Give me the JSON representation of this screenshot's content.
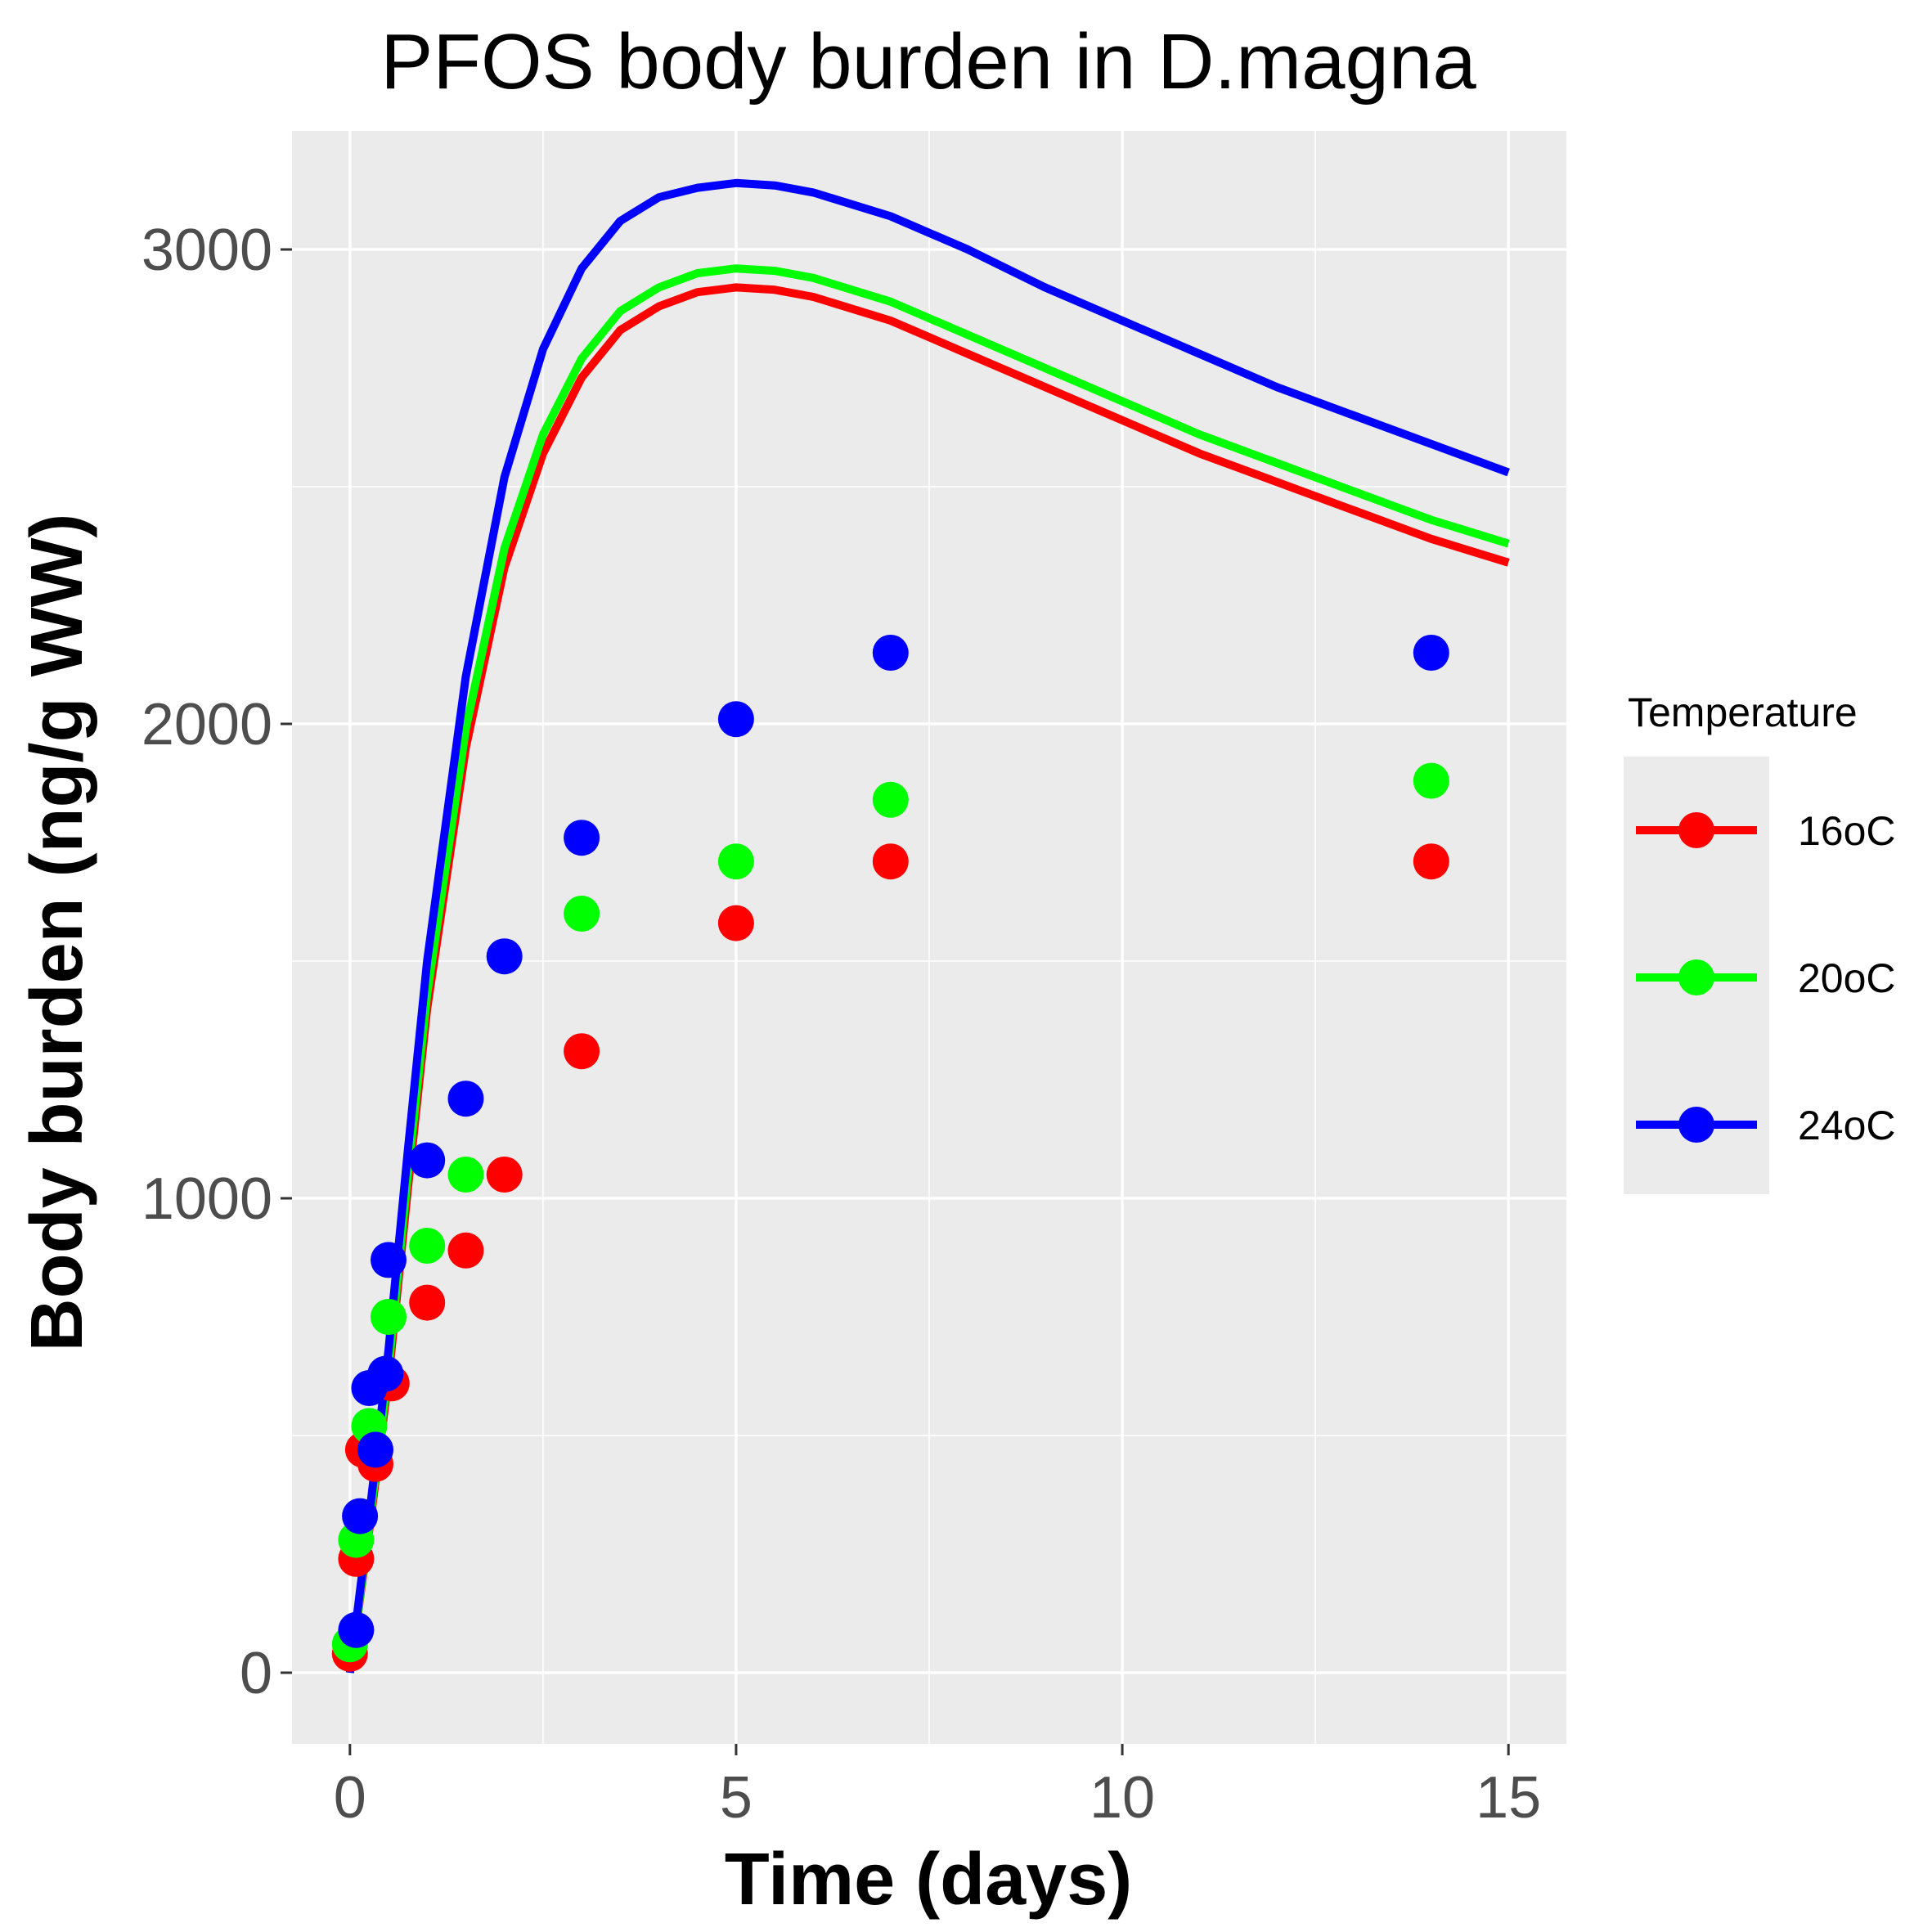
{
  "chart_data": {
    "type": "line",
    "title": "PFOS body burden in D.magna",
    "xlabel": "Time (days)",
    "ylabel": "Body burden (ng/g WW)",
    "xlim": [
      -0.75,
      15.75
    ],
    "ylim": [
      -150,
      3250
    ],
    "x_ticks": [
      0,
      5,
      10,
      15
    ],
    "y_ticks": [
      0,
      1000,
      2000,
      3000
    ],
    "grid": true,
    "panel_background": "#ebebeb",
    "legend": {
      "title": "Temperature",
      "position": "right"
    },
    "series": [
      {
        "name": "16oC",
        "color": "#ff0000",
        "line": {
          "x": [
            0,
            0.25,
            0.5,
            0.75,
            1,
            1.5,
            2,
            2.5,
            3,
            3.5,
            4,
            4.5,
            5,
            5.5,
            6,
            7,
            8,
            9,
            10,
            11,
            12,
            13,
            14,
            15
          ],
          "y": [
            0,
            300,
            620,
            1020,
            1400,
            1950,
            2330,
            2570,
            2730,
            2830,
            2880,
            2910,
            2920,
            2915,
            2900,
            2850,
            2780,
            2710,
            2640,
            2570,
            2510,
            2450,
            2390,
            2340
          ]
        },
        "points": {
          "x": [
            0,
            0.08,
            0.17,
            0.33,
            0.54,
            1,
            1.5,
            2,
            3,
            5,
            7,
            14
          ],
          "y": [
            40,
            240,
            470,
            440,
            610,
            780,
            890,
            1050,
            1310,
            1580,
            1710,
            1710
          ]
        }
      },
      {
        "name": "20oC",
        "color": "#00ff00",
        "line": {
          "x": [
            0,
            0.25,
            0.5,
            0.75,
            1,
            1.5,
            2,
            2.5,
            3,
            3.5,
            4,
            4.5,
            5,
            5.5,
            6,
            7,
            8,
            9,
            10,
            11,
            12,
            13,
            14,
            15
          ],
          "y": [
            0,
            310,
            640,
            1050,
            1430,
            1990,
            2370,
            2610,
            2770,
            2870,
            2920,
            2950,
            2960,
            2955,
            2940,
            2890,
            2820,
            2750,
            2680,
            2610,
            2550,
            2490,
            2430,
            2380
          ]
        },
        "points": {
          "x": [
            0,
            0.08,
            0.25,
            0.5,
            1,
            1.5,
            3,
            5,
            7,
            14
          ],
          "y": [
            60,
            280,
            520,
            750,
            900,
            1050,
            1600,
            1710,
            1840,
            1880
          ]
        }
      },
      {
        "name": "24oC",
        "color": "#0000ff",
        "line": {
          "x": [
            0,
            0.25,
            0.5,
            0.75,
            1,
            1.5,
            2,
            2.5,
            3,
            3.5,
            4,
            4.5,
            5,
            5.5,
            6,
            7,
            8,
            9,
            10,
            11,
            12,
            13,
            14,
            15
          ],
          "y": [
            0,
            330,
            680,
            1100,
            1500,
            2100,
            2520,
            2790,
            2960,
            3060,
            3110,
            3130,
            3140,
            3135,
            3120,
            3070,
            3000,
            2920,
            2850,
            2780,
            2710,
            2650,
            2590,
            2530
          ]
        },
        "points": {
          "x": [
            0.08,
            0.13,
            0.25,
            0.33,
            0.46,
            0.5,
            1,
            1.5,
            2,
            3,
            5,
            7,
            14
          ],
          "y": [
            90,
            330,
            600,
            470,
            630,
            870,
            1080,
            1210,
            1510,
            1760,
            2010,
            2150,
            2150
          ]
        }
      }
    ]
  }
}
